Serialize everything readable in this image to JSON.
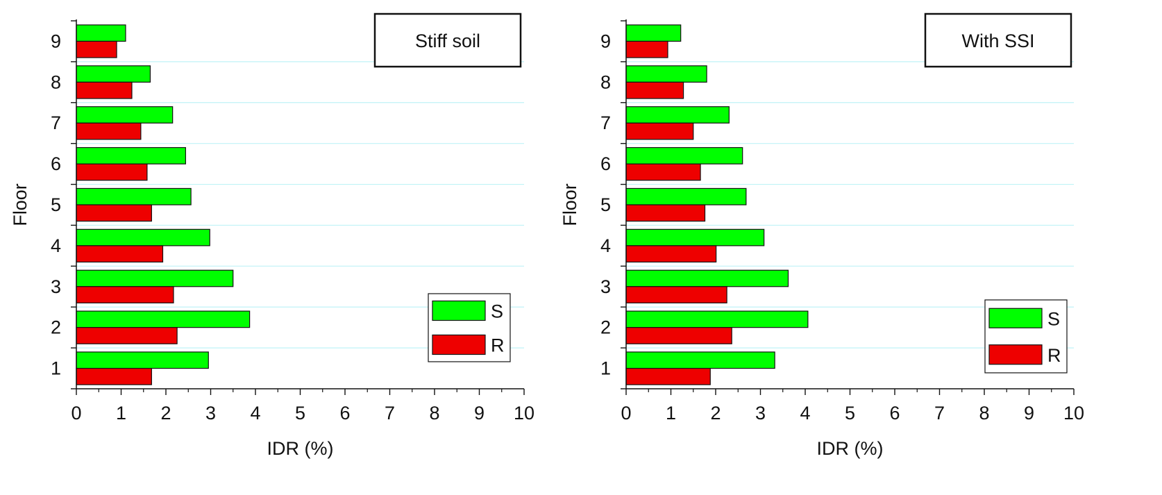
{
  "chart_data": [
    {
      "type": "bar",
      "orientation": "horizontal",
      "panel_label": "Stiff soil",
      "categories": [
        "1",
        "2",
        "3",
        "4",
        "5",
        "6",
        "7",
        "8",
        "9"
      ],
      "series": [
        {
          "name": "S",
          "color": "#00ff00",
          "values": [
            2.95,
            3.87,
            3.5,
            2.98,
            2.56,
            2.44,
            2.15,
            1.65,
            1.1
          ]
        },
        {
          "name": "R",
          "color": "#ee0000",
          "values": [
            1.68,
            2.25,
            2.17,
            1.93,
            1.68,
            1.58,
            1.44,
            1.24,
            0.9
          ]
        }
      ],
      "xlabel": "IDR (%)",
      "ylabel": "Floor",
      "xlim": [
        0,
        10
      ],
      "xticks": [
        "0",
        "1",
        "2",
        "3",
        "4",
        "5",
        "6",
        "7",
        "8",
        "9",
        "10"
      ],
      "grid": "horizontal, light cyan",
      "legend_position": "bottom-right"
    },
    {
      "type": "bar",
      "orientation": "horizontal",
      "panel_label": "With SSI",
      "categories": [
        "1",
        "2",
        "3",
        "4",
        "5",
        "6",
        "7",
        "8",
        "9"
      ],
      "series": [
        {
          "name": "S",
          "color": "#00ff00",
          "values": [
            3.32,
            4.06,
            3.62,
            3.08,
            2.68,
            2.6,
            2.3,
            1.8,
            1.22
          ]
        },
        {
          "name": "R",
          "color": "#ee0000",
          "values": [
            1.88,
            2.36,
            2.25,
            2.01,
            1.76,
            1.66,
            1.5,
            1.28,
            0.93
          ]
        }
      ],
      "xlabel": "IDR (%)",
      "ylabel": "Floor",
      "xlim": [
        0,
        10
      ],
      "xticks": [
        "0",
        "1",
        "2",
        "3",
        "4",
        "5",
        "6",
        "7",
        "8",
        "9",
        "10"
      ],
      "grid": "horizontal, light cyan",
      "legend_position": "bottom-right"
    }
  ]
}
